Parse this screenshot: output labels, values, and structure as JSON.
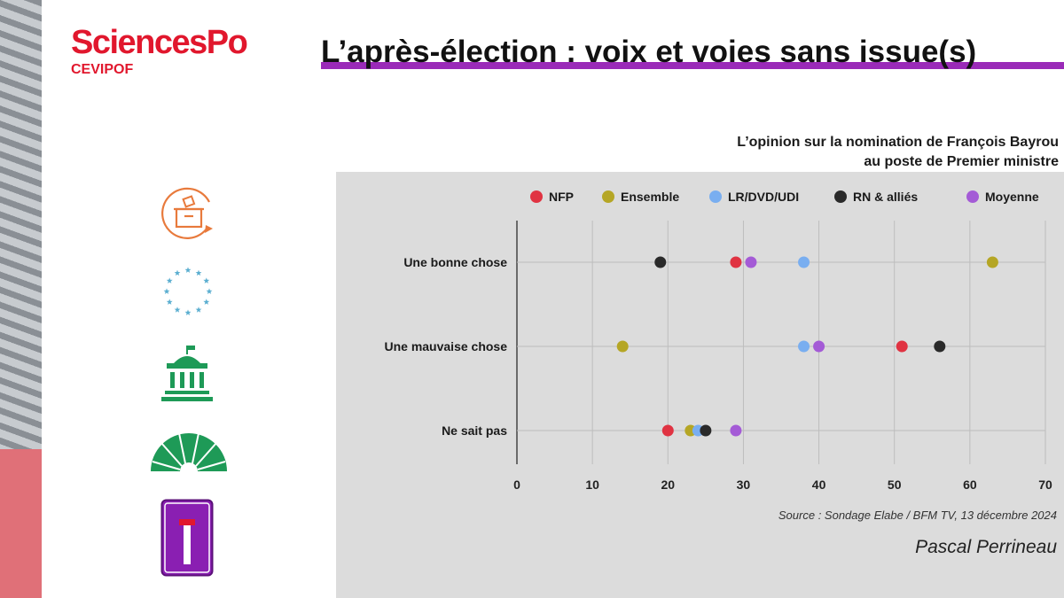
{
  "header": {
    "logo_main": "SciencesPo",
    "logo_sub": "CEVIPOF",
    "title": "L’après-élection : voix et voies sans issue(s)"
  },
  "icons": [
    "ballot-box-icon",
    "eu-stars-icon",
    "government-building-icon",
    "parliament-hemicycle-icon",
    "dead-end-sign-icon"
  ],
  "colors": {
    "accent": "#9a2ab8",
    "brand": "#e1172d"
  },
  "chart_data": {
    "type": "scatter",
    "title": "L’opinion sur la nomination de François Bayrou au poste de Premier ministre",
    "title_lines": [
      "L’opinion sur la nomination de François Bayrou",
      "au poste de Premier ministre"
    ],
    "categories": [
      "Une bonne chose",
      "Une mauvaise chose",
      "Ne sait pas"
    ],
    "xlim": [
      0,
      70
    ],
    "xticks": [
      0,
      10,
      20,
      30,
      40,
      50,
      60,
      70
    ],
    "grid": true,
    "legend_position": "top",
    "series": [
      {
        "name": "NFP",
        "color": "#e03342",
        "values": [
          29,
          51,
          20
        ]
      },
      {
        "name": "Ensemble",
        "color": "#b5a625",
        "values": [
          63,
          14,
          23
        ]
      },
      {
        "name": "LR/DVD/UDI",
        "color": "#79aef0",
        "values": [
          38,
          38,
          24
        ]
      },
      {
        "name": "RN & alliés",
        "color": "#2a2a2a",
        "values": [
          19,
          56,
          25
        ]
      },
      {
        "name": "Moyenne",
        "color": "#a45bd6",
        "values": [
          31,
          40,
          29
        ]
      }
    ]
  },
  "footer": {
    "source": "Source : Sondage Elabe / BFM TV, 13 décembre 2024",
    "author": "Pascal Perrineau"
  }
}
